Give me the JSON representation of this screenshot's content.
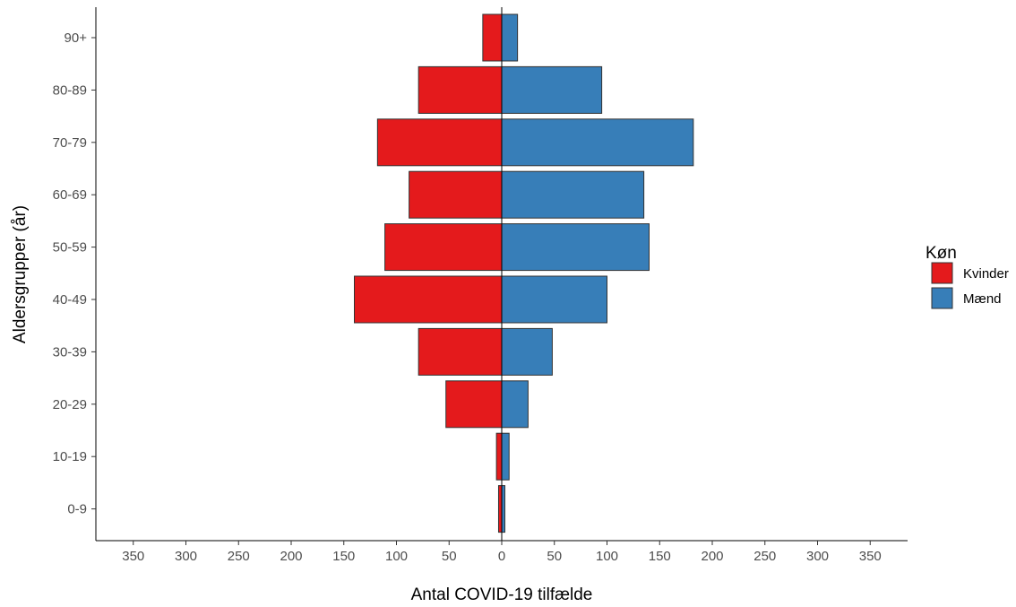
{
  "chart_data": {
    "type": "bar",
    "orientation": "horizontal",
    "layout": "population-pyramid",
    "categories": [
      "0-9",
      "10-19",
      "20-29",
      "30-39",
      "40-49",
      "50-59",
      "60-69",
      "70-79",
      "80-89",
      "90+"
    ],
    "series": [
      {
        "name": "Kvinder",
        "side": "left",
        "color": "#E41A1C",
        "values": [
          3,
          5,
          53,
          79,
          140,
          111,
          88,
          118,
          79,
          18
        ]
      },
      {
        "name": "Mænd",
        "side": "right",
        "color": "#377EB8",
        "values": [
          3,
          7,
          25,
          48,
          100,
          140,
          135,
          182,
          95,
          15
        ]
      }
    ],
    "xlabel": "Antal COVID-19 tilfælde",
    "ylabel": "Aldersgrupper (år)",
    "xlim": [
      -380,
      380
    ],
    "xticks": [
      -350,
      -300,
      -250,
      -200,
      -150,
      -100,
      -50,
      0,
      50,
      100,
      150,
      200,
      250,
      300,
      350
    ],
    "xtick_labels": [
      "350",
      "300",
      "250",
      "200",
      "150",
      "100",
      "50",
      "0",
      "50",
      "100",
      "150",
      "200",
      "250",
      "300",
      "350"
    ],
    "legend": {
      "title": "Køn",
      "position": "right"
    },
    "grid": false
  }
}
